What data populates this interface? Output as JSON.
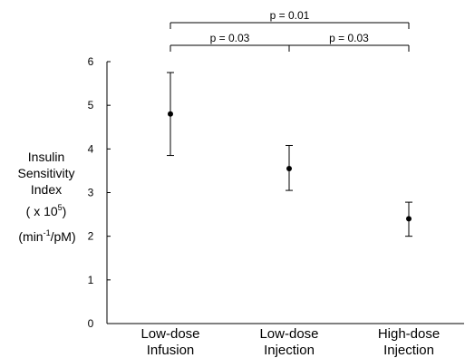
{
  "chart_data": {
    "type": "scatter",
    "title": "",
    "ylabel": {
      "line1": "Insulin",
      "line2": "Sensitivity",
      "line3": "Index",
      "line4_pre": "( x 10",
      "line4_sup": "5",
      "line4_post": ")",
      "line5_pre": "(min",
      "line5_sup": "-1",
      "line5_post": "/pM)"
    },
    "ylim": [
      0,
      6
    ],
    "yticks": [
      "0",
      "1",
      "2",
      "3",
      "4",
      "5",
      "6"
    ],
    "grid": false,
    "categories": [
      {
        "line1": "Low-dose",
        "line2": "Infusion"
      },
      {
        "line1": "Low-dose",
        "line2": "Injection"
      },
      {
        "line1": "High-dose",
        "line2": "Injection"
      }
    ],
    "series": [
      {
        "values": [
          4.8,
          3.55,
          2.4
        ],
        "error_low": [
          3.85,
          3.05,
          2.0
        ],
        "error_high": [
          5.75,
          4.08,
          2.78
        ]
      }
    ],
    "annotations": [
      {
        "text": "p = 0.01",
        "from": 0,
        "to": 2,
        "level": 2
      },
      {
        "text": "p = 0.03",
        "from": 0,
        "to": 1,
        "level": 1
      },
      {
        "text": "p = 0.03",
        "from": 1,
        "to": 2,
        "level": 1
      }
    ]
  }
}
